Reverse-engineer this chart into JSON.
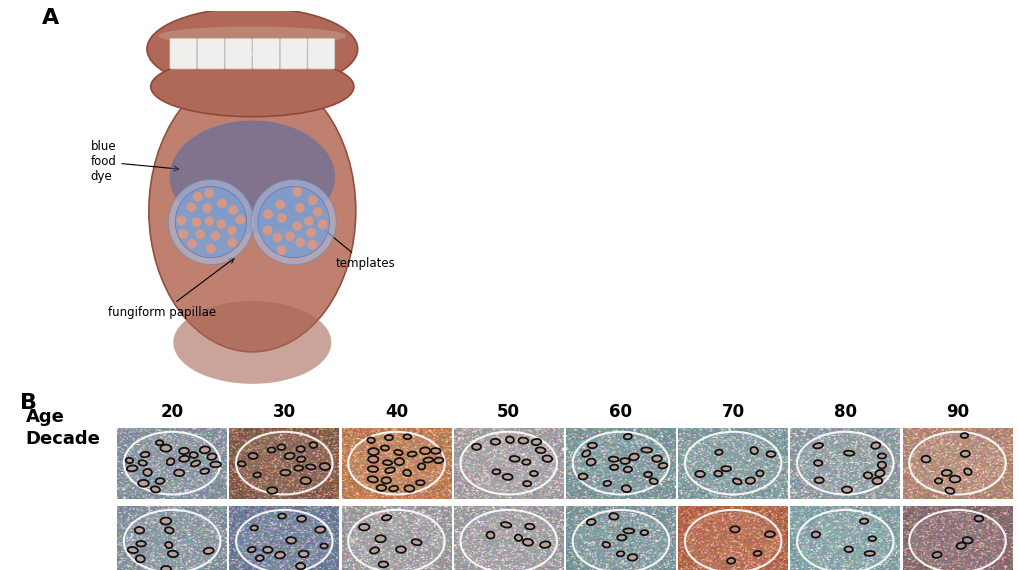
{
  "panel_a_label": "A",
  "panel_b_label": "B",
  "age_label": "Age",
  "decade_label": "Decade",
  "decades": [
    "20",
    "30",
    "40",
    "50",
    "60",
    "70",
    "80",
    "90"
  ],
  "annotations": {
    "blue_food_dye": "blue\nfood\ndye",
    "fungiform_papillae": "fungiform papillae",
    "templates": "templates"
  },
  "tongue_color": "#c08070",
  "tongue_mid": "#a86858",
  "tongue_dark": "#905040",
  "blue_dye_color": "#4466aa",
  "blue_dye_alpha": 0.5,
  "template_border_color": "#aabbdd",
  "template_fill_color": "#7799cc",
  "template_alpha": 0.55,
  "papillae_color": "#d49888",
  "lip_color": "#b06858",
  "lip_dark": "#904838",
  "tooth_color": "#efefee",
  "tooth_shadow": "#cccccc",
  "background_color": "#ffffff",
  "row_colors": [
    [
      "#6a9ab5",
      "#6a4a3a",
      "#c07848",
      "#9aacba",
      "#60a0b0",
      "#68a8b8",
      "#78a8ba",
      "#b08878"
    ],
    [
      "#6a9ab5",
      "#4878aa",
      "#90a8b8",
      "#90a8b8",
      "#60a0b0",
      "#b05838",
      "#68b0c0",
      "#706070"
    ]
  ],
  "papillae_counts_row1": [
    20,
    15,
    24,
    13,
    17,
    9,
    11,
    8
  ],
  "papillae_counts_row2": [
    10,
    12,
    7,
    6,
    8,
    4,
    5,
    4
  ],
  "font_size_label": 13,
  "font_size_decade": 12,
  "font_size_anno": 8.5
}
